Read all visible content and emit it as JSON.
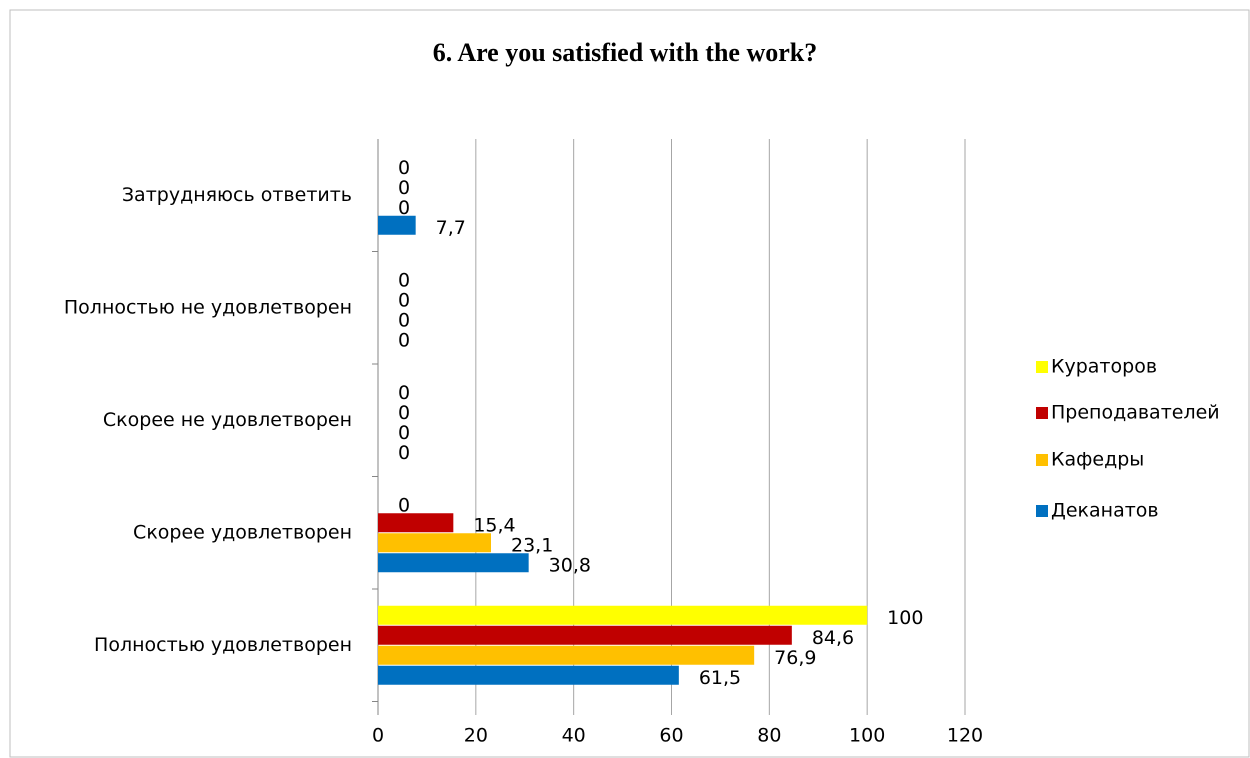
{
  "chart_data": {
    "type": "hbar",
    "title": "6. Are you satisfied with the work?",
    "categories": [
      "Полностью удовлетворен",
      "Скорее удовлетворен",
      "Скорее не удовлетворен",
      "Полностью не удовлетворен",
      "Затрудняюсь ответить"
    ],
    "series": [
      {
        "name": "Деканатов",
        "color": "#0070c0",
        "values": [
          61.5,
          30.8,
          0,
          0,
          7.7
        ],
        "value_labels": [
          "61,5",
          "30,8",
          "0",
          "0",
          "7,7"
        ]
      },
      {
        "name": "Кафедры",
        "color": "#ffc000",
        "values": [
          76.9,
          23.1,
          0,
          0,
          0
        ],
        "value_labels": [
          "76,9",
          "23,1",
          "0",
          "0",
          "0"
        ]
      },
      {
        "name": "Преподавателей",
        "color": "#c00000",
        "values": [
          84.6,
          15.4,
          0,
          0,
          0
        ],
        "value_labels": [
          "84,6",
          "15,4",
          "0",
          "0",
          "0"
        ]
      },
      {
        "name": "Кураторов",
        "color": "#ffff00",
        "values": [
          100,
          0,
          0,
          0,
          0
        ],
        "value_labels": [
          "100",
          "0",
          "0",
          "0",
          "0"
        ]
      }
    ],
    "xlim": [
      0,
      120
    ],
    "xticks": [
      0,
      20,
      40,
      60,
      80,
      100,
      120
    ],
    "grid": true,
    "legend": "right"
  }
}
